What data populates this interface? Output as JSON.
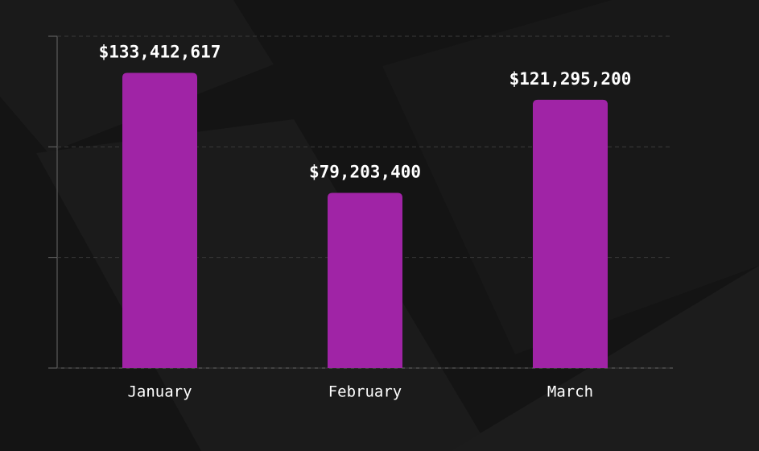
{
  "chart_data": {
    "type": "bar",
    "categories": [
      "January",
      "February",
      "March"
    ],
    "values": [
      133412617,
      79203400,
      121295200
    ],
    "value_labels": [
      "$133,412,617",
      "$79,203,400",
      "$121,295,200"
    ],
    "color": "#a024a6",
    "ylim": [
      0,
      150000000
    ],
    "yticks": [
      0,
      50000000,
      100000000,
      150000000
    ],
    "grid": true
  }
}
